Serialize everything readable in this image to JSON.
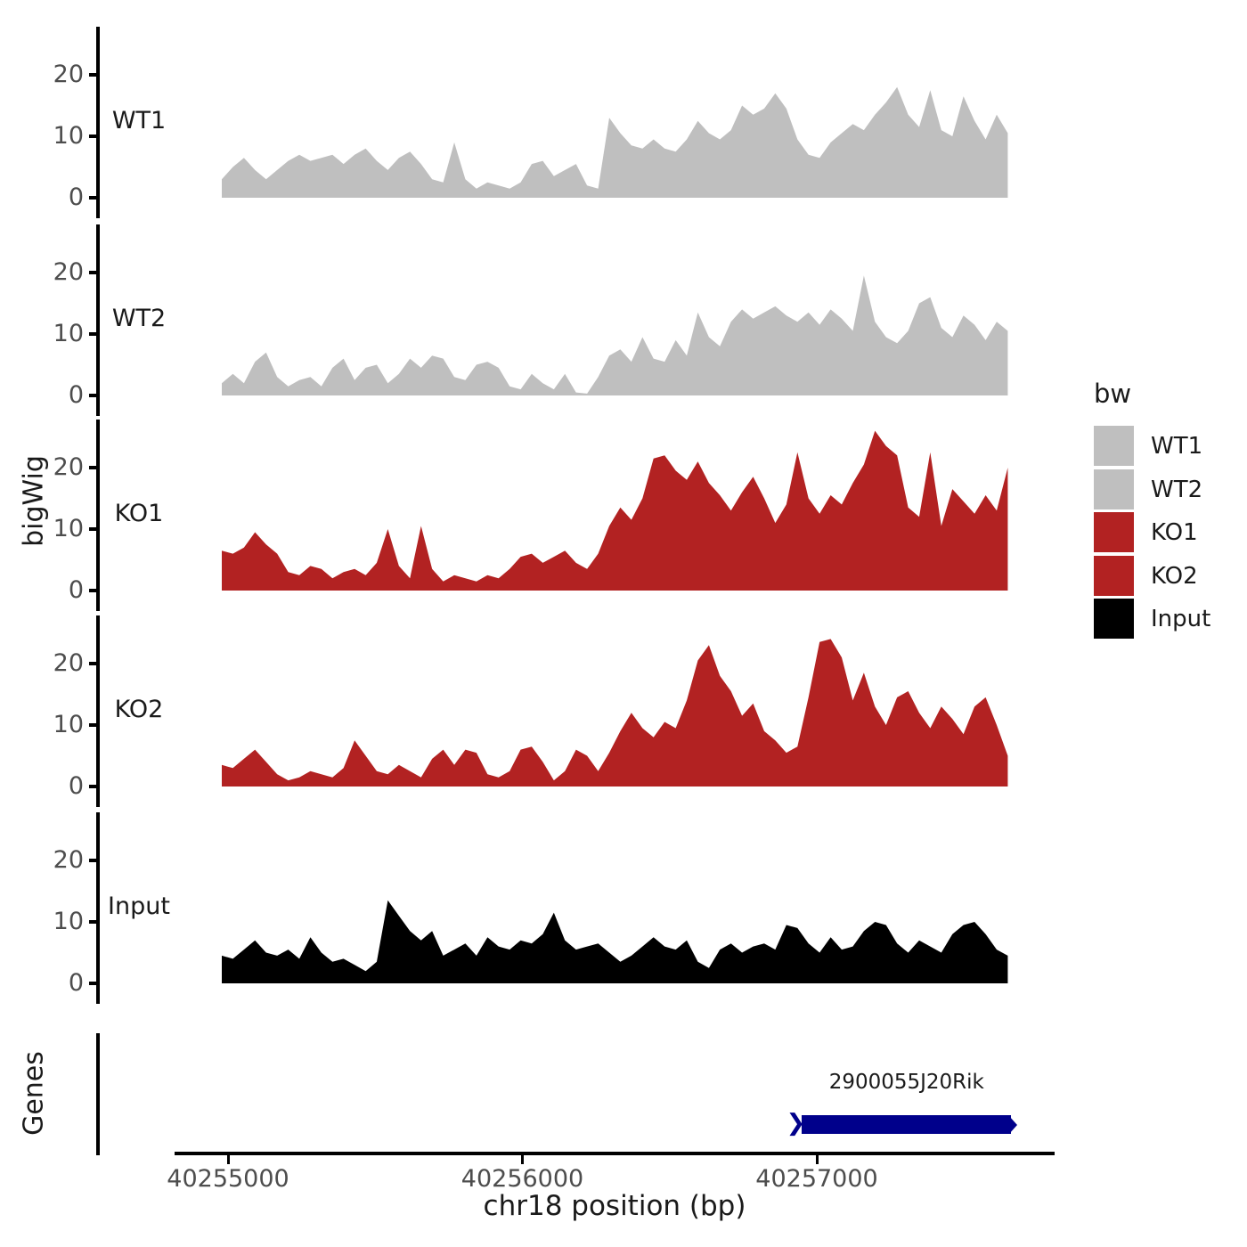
{
  "axes": {
    "y_title": "bigWig",
    "y_ticks": [
      "20",
      "10",
      "0"
    ],
    "x_title": "chr18 position (bp)",
    "x_ticks": [
      {
        "label": "40255000",
        "bp": 40255000
      },
      {
        "label": "40256000",
        "bp": 40256000
      },
      {
        "label": "40257000",
        "bp": 40257000
      }
    ]
  },
  "genes_panel": {
    "title": "Genes",
    "gene": {
      "label": "2900055J20Rik",
      "strand": "+",
      "start_bp": 40256950,
      "end_bp": 40257660,
      "color": "#00008B"
    }
  },
  "icons": {
    "strand_chevron": "❯"
  },
  "legend": {
    "title": "bw",
    "items": [
      {
        "label": "WT1",
        "color": "#BFBFBF"
      },
      {
        "label": "WT2",
        "color": "#BFBFBF"
      },
      {
        "label": "KO1",
        "color": "#B22222"
      },
      {
        "label": "KO2",
        "color": "#B22222"
      },
      {
        "label": "Input",
        "color": "#000000"
      }
    ]
  },
  "colors": {
    "wt_fill": "#BFBFBF",
    "ko_fill": "#B22222",
    "input_fill": "#000000",
    "gene_fill": "#00008B",
    "axis_line": "#000000",
    "tick_text": "#4D4D4D"
  },
  "chart_data": {
    "type": "area",
    "title": "",
    "xlabel": "chr18 position (bp)",
    "ylabel": "bigWig",
    "x_axis": {
      "start_bp": 40254980,
      "end_bp": 40257650,
      "ticks": [
        40255000,
        40256000,
        40257000
      ]
    },
    "y_axis": {
      "ticks": [
        0,
        10,
        20
      ],
      "ylim": [
        0,
        28
      ]
    },
    "facets": [
      "WT1",
      "WT2",
      "KO1",
      "KO2",
      "Input",
      "Genes"
    ],
    "tracks": [
      {
        "name": "WT1",
        "color": "#BFBFBF",
        "values": [
          3,
          5,
          6.5,
          4.5,
          3,
          4.5,
          6,
          7,
          6,
          6.5,
          7,
          5.5,
          7,
          8,
          6,
          4.5,
          6.5,
          7.5,
          5.5,
          3,
          2.5,
          9,
          3,
          1.5,
          2.5,
          2,
          1.5,
          2.5,
          5.5,
          6,
          3.5,
          4.5,
          5.5,
          2,
          1.5,
          13,
          10.5,
          8.5,
          8,
          9.5,
          8,
          7.5,
          9.5,
          12.5,
          10.5,
          9.5,
          11,
          15,
          13.5,
          14.5,
          17,
          14.5,
          9.5,
          7,
          6.5,
          9,
          10.5,
          12,
          11,
          13.5,
          15.5,
          18,
          13.5,
          11.5,
          17.5,
          11,
          10,
          16.5,
          12.5,
          9.5,
          13.5,
          10.5
        ]
      },
      {
        "name": "WT2",
        "color": "#BFBFBF",
        "values": [
          2,
          3.5,
          2,
          5.5,
          7,
          3,
          1.5,
          2.5,
          3,
          1.5,
          4.5,
          6,
          2.5,
          4.5,
          5,
          2,
          3.5,
          6,
          4.5,
          6.5,
          6,
          3,
          2.5,
          5,
          5.5,
          4.5,
          1.5,
          1,
          3.5,
          2,
          1,
          3.5,
          0.5,
          0.3,
          3,
          6.5,
          7.5,
          5.5,
          9.5,
          6,
          5.5,
          9,
          6.5,
          13.5,
          9.5,
          8,
          12,
          14,
          12.5,
          13.5,
          14.5,
          13,
          12,
          13.5,
          11.5,
          14,
          12.5,
          10.5,
          19.5,
          12,
          9.5,
          8.5,
          10.5,
          15,
          16,
          11,
          9.5,
          13,
          11.5,
          9,
          12,
          10.5
        ]
      },
      {
        "name": "KO1",
        "color": "#B22222",
        "values": [
          6.5,
          6,
          7,
          9.5,
          7.5,
          6,
          3,
          2.5,
          4,
          3.5,
          2,
          3,
          3.5,
          2.5,
          4.5,
          10,
          4,
          2,
          10.5,
          3.5,
          1.5,
          2.5,
          2,
          1.5,
          2.5,
          2,
          3.5,
          5.5,
          6,
          4.5,
          5.5,
          6.5,
          4.5,
          3.5,
          6,
          10.5,
          13.5,
          11.5,
          15,
          21.5,
          22,
          19.5,
          18,
          21,
          17.5,
          15.5,
          13,
          16,
          18.5,
          15,
          11,
          14,
          22.5,
          15,
          12.5,
          15.5,
          14,
          17.5,
          20.5,
          26,
          23.5,
          22,
          13.5,
          12,
          22.5,
          10.5,
          16.5,
          14.5,
          12.5,
          15.5,
          13,
          20
        ]
      },
      {
        "name": "KO2",
        "color": "#B22222",
        "values": [
          3.5,
          3,
          4.5,
          6,
          4,
          2,
          1,
          1.5,
          2.5,
          2,
          1.5,
          3,
          7.5,
          5,
          2.5,
          2,
          3.5,
          2.5,
          1.5,
          4.5,
          6,
          3.5,
          6,
          5.5,
          2,
          1.5,
          2.5,
          6,
          6.5,
          4,
          1,
          2.5,
          6,
          5,
          2.5,
          5.5,
          9,
          12,
          9.5,
          8,
          10.5,
          9.5,
          14,
          20.5,
          23,
          18,
          15.5,
          11.5,
          13.5,
          9,
          7.5,
          5.5,
          6.5,
          14.5,
          23.5,
          24,
          21,
          14,
          18.5,
          13,
          10,
          14.5,
          15.5,
          12,
          9.5,
          13,
          11,
          8.5,
          13,
          14.5,
          10,
          5
        ]
      },
      {
        "name": "Input",
        "color": "#000000",
        "values": [
          4.5,
          4,
          5.5,
          7,
          5,
          4.5,
          5.5,
          4,
          7.5,
          5,
          3.5,
          4,
          3,
          2,
          3.5,
          13.5,
          11,
          8.5,
          7,
          8.5,
          4.5,
          5.5,
          6.5,
          4.5,
          7.5,
          6,
          5.5,
          7,
          6.5,
          8,
          11.5,
          7,
          5.5,
          6,
          6.5,
          5,
          3.5,
          4.5,
          6,
          7.5,
          6,
          5.5,
          7,
          3.5,
          2.5,
          5.5,
          6.5,
          5,
          6,
          6.5,
          5.5,
          9.5,
          9,
          6.5,
          5,
          7.5,
          5.5,
          6,
          8.5,
          10,
          9.5,
          6.5,
          5,
          7,
          6,
          5,
          8,
          9.5,
          10,
          8,
          5.5,
          4.5
        ]
      }
    ]
  }
}
